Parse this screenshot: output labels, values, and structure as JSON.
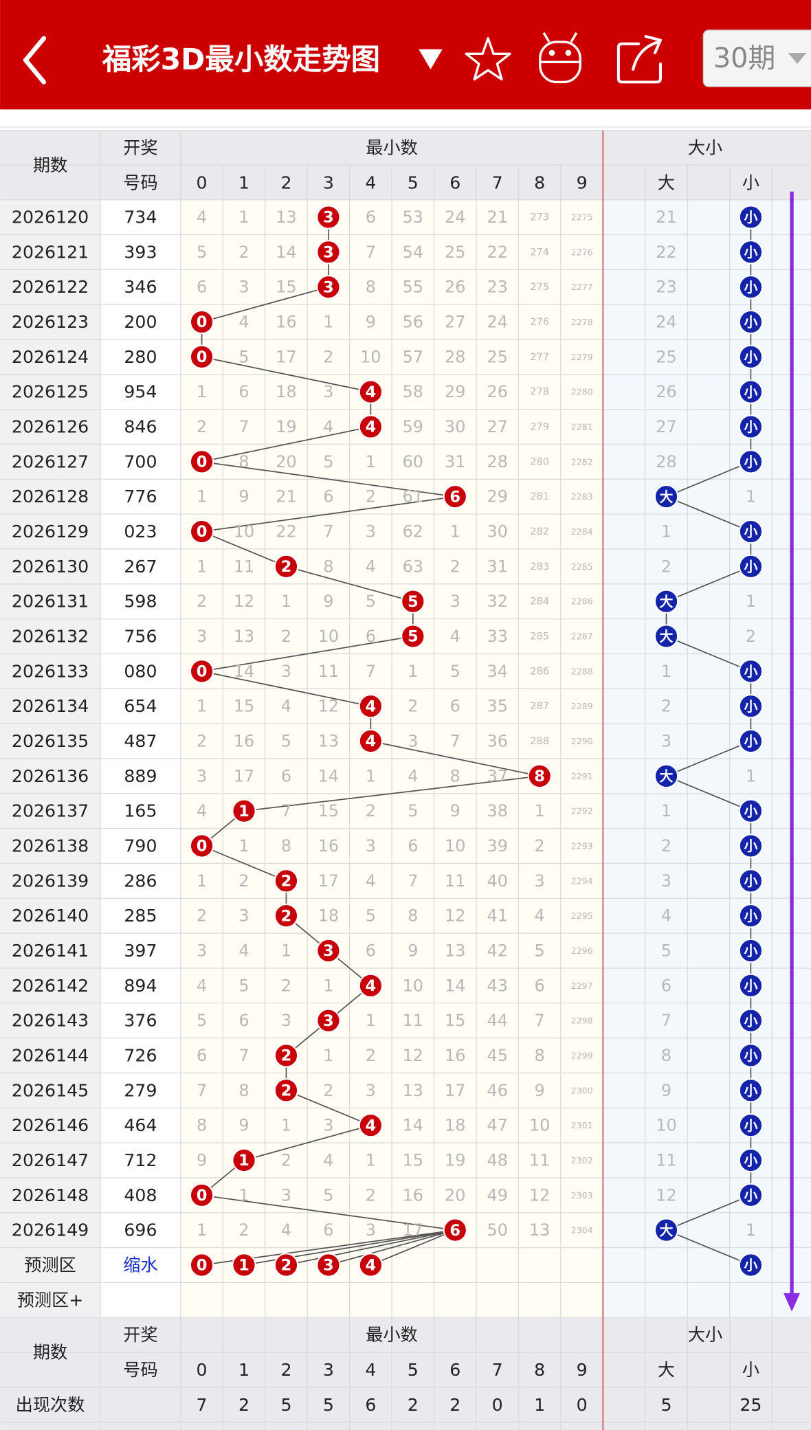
{
  "header": {
    "title": "福彩3D最小数走势图",
    "period_select": "30期"
  },
  "table": {
    "head": {
      "period": "期数",
      "number": [
        "开奖",
        "号码"
      ],
      "min_group": "最小数",
      "size_group": "大小",
      "digits": [
        0,
        1,
        2,
        3,
        4,
        5,
        6,
        7,
        8,
        9
      ],
      "big": "大",
      "small": "小"
    },
    "rows": [
      {
        "period": "2026120",
        "number": "734",
        "min": 3,
        "cells": [
          4,
          1,
          13,
          null,
          6,
          53,
          24,
          21,
          273,
          2275
        ],
        "size": "小",
        "size_miss": 21
      },
      {
        "period": "2026121",
        "number": "393",
        "min": 3,
        "cells": [
          5,
          2,
          14,
          null,
          7,
          54,
          25,
          22,
          274,
          2276
        ],
        "size": "小",
        "size_miss": 22
      },
      {
        "period": "2026122",
        "number": "346",
        "min": 3,
        "cells": [
          6,
          3,
          15,
          null,
          8,
          55,
          26,
          23,
          275,
          2277
        ],
        "size": "小",
        "size_miss": 23
      },
      {
        "period": "2026123",
        "number": "200",
        "min": 0,
        "cells": [
          null,
          4,
          16,
          1,
          9,
          56,
          27,
          24,
          276,
          2278
        ],
        "size": "小",
        "size_miss": 24
      },
      {
        "period": "2026124",
        "number": "280",
        "min": 0,
        "cells": [
          null,
          5,
          17,
          2,
          10,
          57,
          28,
          25,
          277,
          2279
        ],
        "size": "小",
        "size_miss": 25
      },
      {
        "period": "2026125",
        "number": "954",
        "min": 4,
        "cells": [
          1,
          6,
          18,
          3,
          null,
          58,
          29,
          26,
          278,
          2280
        ],
        "size": "小",
        "size_miss": 26
      },
      {
        "period": "2026126",
        "number": "846",
        "min": 4,
        "cells": [
          2,
          7,
          19,
          4,
          null,
          59,
          30,
          27,
          279,
          2281
        ],
        "size": "小",
        "size_miss": 27
      },
      {
        "period": "2026127",
        "number": "700",
        "min": 0,
        "cells": [
          null,
          8,
          20,
          5,
          1,
          60,
          31,
          28,
          280,
          2282
        ],
        "size": "小",
        "size_miss": 28
      },
      {
        "period": "2026128",
        "number": "776",
        "min": 6,
        "cells": [
          1,
          9,
          21,
          6,
          2,
          61,
          null,
          29,
          281,
          2283
        ],
        "size": "大",
        "size_miss": 1
      },
      {
        "period": "2026129",
        "number": "023",
        "min": 0,
        "cells": [
          null,
          10,
          22,
          7,
          3,
          62,
          1,
          30,
          282,
          2284
        ],
        "size": "小",
        "size_miss": 1
      },
      {
        "period": "2026130",
        "number": "267",
        "min": 2,
        "cells": [
          1,
          11,
          null,
          8,
          4,
          63,
          2,
          31,
          283,
          2285
        ],
        "size": "小",
        "size_miss": 2
      },
      {
        "period": "2026131",
        "number": "598",
        "min": 5,
        "cells": [
          2,
          12,
          1,
          9,
          5,
          null,
          3,
          32,
          284,
          2286
        ],
        "size": "大",
        "size_miss": 1
      },
      {
        "period": "2026132",
        "number": "756",
        "min": 5,
        "cells": [
          3,
          13,
          2,
          10,
          6,
          null,
          4,
          33,
          285,
          2287
        ],
        "size": "大",
        "size_miss": 2
      },
      {
        "period": "2026133",
        "number": "080",
        "min": 0,
        "cells": [
          null,
          14,
          3,
          11,
          7,
          1,
          5,
          34,
          286,
          2288
        ],
        "size": "小",
        "size_miss": 1
      },
      {
        "period": "2026134",
        "number": "654",
        "min": 4,
        "cells": [
          1,
          15,
          4,
          12,
          null,
          2,
          6,
          35,
          287,
          2289
        ],
        "size": "小",
        "size_miss": 2
      },
      {
        "period": "2026135",
        "number": "487",
        "min": 4,
        "cells": [
          2,
          16,
          5,
          13,
          null,
          3,
          7,
          36,
          288,
          2290
        ],
        "size": "小",
        "size_miss": 3
      },
      {
        "period": "2026136",
        "number": "889",
        "min": 8,
        "cells": [
          3,
          17,
          6,
          14,
          1,
          4,
          8,
          37,
          null,
          2291
        ],
        "size": "大",
        "size_miss": 1
      },
      {
        "period": "2026137",
        "number": "165",
        "min": 1,
        "cells": [
          4,
          null,
          7,
          15,
          2,
          5,
          9,
          38,
          1,
          2292
        ],
        "size": "小",
        "size_miss": 1
      },
      {
        "period": "2026138",
        "number": "790",
        "min": 0,
        "cells": [
          null,
          1,
          8,
          16,
          3,
          6,
          10,
          39,
          2,
          2293
        ],
        "size": "小",
        "size_miss": 2
      },
      {
        "period": "2026139",
        "number": "286",
        "min": 2,
        "cells": [
          1,
          2,
          null,
          17,
          4,
          7,
          11,
          40,
          3,
          2294
        ],
        "size": "小",
        "size_miss": 3
      },
      {
        "period": "2026140",
        "number": "285",
        "min": 2,
        "cells": [
          2,
          3,
          null,
          18,
          5,
          8,
          12,
          41,
          4,
          2295
        ],
        "size": "小",
        "size_miss": 4
      },
      {
        "period": "2026141",
        "number": "397",
        "min": 3,
        "cells": [
          3,
          4,
          1,
          null,
          6,
          9,
          13,
          42,
          5,
          2296
        ],
        "size": "小",
        "size_miss": 5
      },
      {
        "period": "2026142",
        "number": "894",
        "min": 4,
        "cells": [
          4,
          5,
          2,
          1,
          null,
          10,
          14,
          43,
          6,
          2297
        ],
        "size": "小",
        "size_miss": 6
      },
      {
        "period": "2026143",
        "number": "376",
        "min": 3,
        "cells": [
          5,
          6,
          3,
          null,
          1,
          11,
          15,
          44,
          7,
          2298
        ],
        "size": "小",
        "size_miss": 7
      },
      {
        "period": "2026144",
        "number": "726",
        "min": 2,
        "cells": [
          6,
          7,
          null,
          1,
          2,
          12,
          16,
          45,
          8,
          2299
        ],
        "size": "小",
        "size_miss": 8
      },
      {
        "period": "2026145",
        "number": "279",
        "min": 2,
        "cells": [
          7,
          8,
          null,
          2,
          3,
          13,
          17,
          46,
          9,
          2300
        ],
        "size": "小",
        "size_miss": 9
      },
      {
        "period": "2026146",
        "number": "464",
        "min": 4,
        "cells": [
          8,
          9,
          1,
          3,
          null,
          14,
          18,
          47,
          10,
          2301
        ],
        "size": "小",
        "size_miss": 10
      },
      {
        "period": "2026147",
        "number": "712",
        "min": 1,
        "cells": [
          9,
          null,
          2,
          4,
          1,
          15,
          19,
          48,
          11,
          2302
        ],
        "size": "小",
        "size_miss": 11
      },
      {
        "period": "2026148",
        "number": "408",
        "min": 0,
        "cells": [
          null,
          1,
          3,
          5,
          2,
          16,
          20,
          49,
          12,
          2303
        ],
        "size": "小",
        "size_miss": 12
      },
      {
        "period": "2026149",
        "number": "696",
        "min": 6,
        "cells": [
          1,
          2,
          4,
          6,
          3,
          17,
          null,
          50,
          13,
          2304
        ],
        "size": "大",
        "size_miss": 1
      }
    ],
    "predict": {
      "label": "预测区",
      "number": "缩水",
      "mins": [
        0,
        1,
        2,
        3,
        4
      ],
      "size": "小"
    },
    "predict_plus": {
      "label": "预测区+"
    },
    "foot": {
      "period": "期数",
      "number": [
        "开奖",
        "号码"
      ],
      "min_group": "最小数",
      "size_group": "大小",
      "digits": [
        0,
        1,
        2,
        3,
        4,
        5,
        6,
        7,
        8,
        9
      ],
      "big": "大",
      "small": "小",
      "count_label": "出现次数",
      "counts": [
        7,
        2,
        5,
        5,
        6,
        2,
        2,
        0,
        1,
        0
      ],
      "big_count": 5,
      "small_count": 25
    }
  }
}
